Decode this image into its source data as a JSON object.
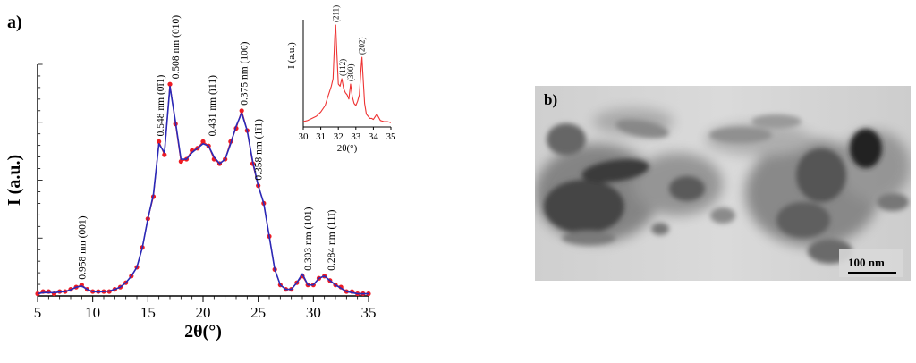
{
  "panel_a_label": "a)",
  "panel_b_label": "b)",
  "colors": {
    "data_points": "#ee1c24",
    "fit_line": "#2a2ab8",
    "inset_line": "#ee3333"
  },
  "chart_data": [
    {
      "type": "line",
      "xlabel": "2θ(°)",
      "ylabel": "I (a.u.)",
      "xlim": [
        5,
        35
      ],
      "ylim": [
        0,
        1.05
      ],
      "xticks": [
        5,
        10,
        15,
        20,
        25,
        30,
        35
      ],
      "series": [
        {
          "style": "points",
          "x": [
            5,
            5.5,
            6,
            6.5,
            7,
            7.5,
            8,
            8.5,
            9,
            9.5,
            10,
            10.5,
            11,
            11.5,
            12,
            12.5,
            13,
            13.5,
            14,
            14.5,
            15,
            15.5,
            16,
            16.5,
            17,
            17.5,
            18,
            18.5,
            19,
            19.5,
            20,
            20.5,
            21,
            21.5,
            22,
            22.5,
            23,
            23.5,
            24,
            24.5,
            25,
            25.5,
            26,
            26.5,
            27,
            27.5,
            28,
            28.5,
            29,
            29.5,
            30,
            30.5,
            31,
            31.5,
            32,
            32.5,
            33,
            33.5,
            34,
            34.5,
            35
          ],
          "y": [
            0.01,
            0.02,
            0.02,
            0.01,
            0.02,
            0.02,
            0.03,
            0.04,
            0.05,
            0.03,
            0.02,
            0.02,
            0.02,
            0.02,
            0.03,
            0.04,
            0.06,
            0.09,
            0.13,
            0.22,
            0.35,
            0.45,
            0.7,
            0.64,
            0.96,
            0.78,
            0.61,
            0.62,
            0.66,
            0.67,
            0.7,
            0.68,
            0.62,
            0.6,
            0.62,
            0.7,
            0.76,
            0.84,
            0.75,
            0.6,
            0.5,
            0.42,
            0.27,
            0.12,
            0.05,
            0.03,
            0.03,
            0.06,
            0.09,
            0.05,
            0.05,
            0.08,
            0.09,
            0.07,
            0.05,
            0.04,
            0.02,
            0.02,
            0.01,
            0.01,
            0.01
          ]
        },
        {
          "style": "line",
          "x": [
            5,
            5.5,
            6,
            6.5,
            7,
            7.5,
            8,
            8.5,
            9,
            9.5,
            10,
            10.5,
            11,
            11.5,
            12,
            12.5,
            13,
            13.5,
            14,
            14.5,
            15,
            15.5,
            16,
            16.5,
            17,
            17.5,
            18,
            18.5,
            19,
            19.5,
            20,
            20.5,
            21,
            21.5,
            22,
            22.5,
            23,
            23.5,
            24,
            24.5,
            25,
            25.5,
            26,
            26.5,
            27,
            27.5,
            28,
            28.5,
            29,
            29.5,
            30,
            30.5,
            31,
            31.5,
            32,
            32.5,
            33,
            33.5,
            34,
            34.5,
            35
          ],
          "y": [
            0.01,
            0.015,
            0.015,
            0.015,
            0.018,
            0.02,
            0.028,
            0.04,
            0.045,
            0.03,
            0.02,
            0.018,
            0.02,
            0.022,
            0.03,
            0.04,
            0.06,
            0.09,
            0.13,
            0.22,
            0.35,
            0.46,
            0.69,
            0.65,
            0.95,
            0.79,
            0.62,
            0.62,
            0.65,
            0.67,
            0.69,
            0.68,
            0.63,
            0.6,
            0.62,
            0.69,
            0.77,
            0.83,
            0.75,
            0.61,
            0.5,
            0.42,
            0.27,
            0.12,
            0.05,
            0.03,
            0.03,
            0.06,
            0.1,
            0.05,
            0.05,
            0.08,
            0.09,
            0.07,
            0.05,
            0.035,
            0.02,
            0.015,
            0.01,
            0.01,
            0.01
          ]
        }
      ],
      "annotations": [
        {
          "x": 9,
          "y": 0.05,
          "text": "0.958 nm (001)"
        },
        {
          "x": 16.1,
          "y": 0.7,
          "text": "0.548 nm (0ī1)"
        },
        {
          "x": 17.5,
          "y": 0.96,
          "text": "0.508 nm (010)"
        },
        {
          "x": 20.8,
          "y": 0.7,
          "text": "0.431 nm (ī11)"
        },
        {
          "x": 23.7,
          "y": 0.84,
          "text": "0.375 nm (100)"
        },
        {
          "x": 25.0,
          "y": 0.5,
          "text": "0.358 nm (1ī1)"
        },
        {
          "x": 29.5,
          "y": 0.09,
          "text": "0.303 nm (101)"
        },
        {
          "x": 31.6,
          "y": 0.09,
          "text": "0.284 nm (11ī)"
        }
      ]
    },
    {
      "type": "line",
      "xlabel": "2θ(°)",
      "ylabel": "I (a.u.)",
      "xlim": [
        30,
        35
      ],
      "ylim": [
        0,
        1.0
      ],
      "xticks": [
        30,
        31,
        32,
        33,
        34,
        35
      ],
      "series": [
        {
          "x": [
            30,
            30.25,
            30.5,
            30.75,
            31,
            31.25,
            31.4,
            31.5,
            31.6,
            31.7,
            31.8,
            31.85,
            31.9,
            32,
            32.1,
            32.2,
            32.3,
            32.4,
            32.5,
            32.6,
            32.7,
            32.8,
            32.9,
            33,
            33.1,
            33.2,
            33.3,
            33.35,
            33.4,
            33.5,
            33.6,
            33.7,
            33.8,
            33.9,
            34,
            34.2,
            34.4,
            34.6,
            34.8,
            35
          ],
          "y": [
            0.05,
            0.06,
            0.08,
            0.1,
            0.14,
            0.2,
            0.28,
            0.33,
            0.38,
            0.45,
            0.85,
            0.95,
            0.75,
            0.4,
            0.38,
            0.45,
            0.36,
            0.32,
            0.3,
            0.26,
            0.4,
            0.28,
            0.22,
            0.2,
            0.24,
            0.3,
            0.55,
            0.65,
            0.5,
            0.22,
            0.12,
            0.1,
            0.08,
            0.08,
            0.07,
            0.12,
            0.06,
            0.05,
            0.05,
            0.04
          ]
        }
      ],
      "annotations": [
        {
          "x": 31.85,
          "y": 0.95,
          "text": "(211)"
        },
        {
          "x": 32.25,
          "y": 0.45,
          "text": "(112)"
        },
        {
          "x": 32.7,
          "y": 0.4,
          "text": "(300)"
        },
        {
          "x": 33.35,
          "y": 0.65,
          "text": "(202)"
        }
      ]
    }
  ],
  "tem": {
    "scale_label": "100 nm"
  }
}
